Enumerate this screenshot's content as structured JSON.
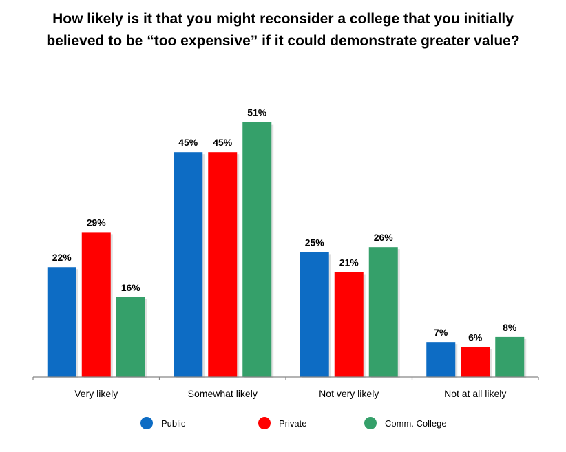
{
  "chart_data": {
    "type": "bar",
    "title": [
      "How likely is it that you might reconsider a college that you initially",
      "believed to be “too expensive” if it could demonstrate greater value?"
    ],
    "categories": [
      "Very likely",
      "Somewhat likely",
      "Not very likely",
      "Not at all likely"
    ],
    "series": [
      {
        "name": "Public",
        "values": [
          22,
          45,
          25,
          7
        ],
        "labels": [
          "22%",
          "45%",
          "25%",
          "7%"
        ]
      },
      {
        "name": "Private",
        "values": [
          29,
          45,
          21,
          6
        ],
        "labels": [
          "29%",
          "45%",
          "21%",
          "6%"
        ]
      },
      {
        "name": "Comm. College",
        "values": [
          16,
          51,
          26,
          8
        ],
        "labels": [
          "16%",
          "51%",
          "26%",
          "8%"
        ]
      }
    ],
    "value_unit": "%",
    "ylim": [
      0,
      51.5
    ],
    "y_axis_visible": false,
    "grid": false,
    "legend_position": "bottom",
    "colors": {
      "Public": "#0d6cc4",
      "Private": "#ff0000",
      "Comm. College": "#35a06a"
    }
  }
}
